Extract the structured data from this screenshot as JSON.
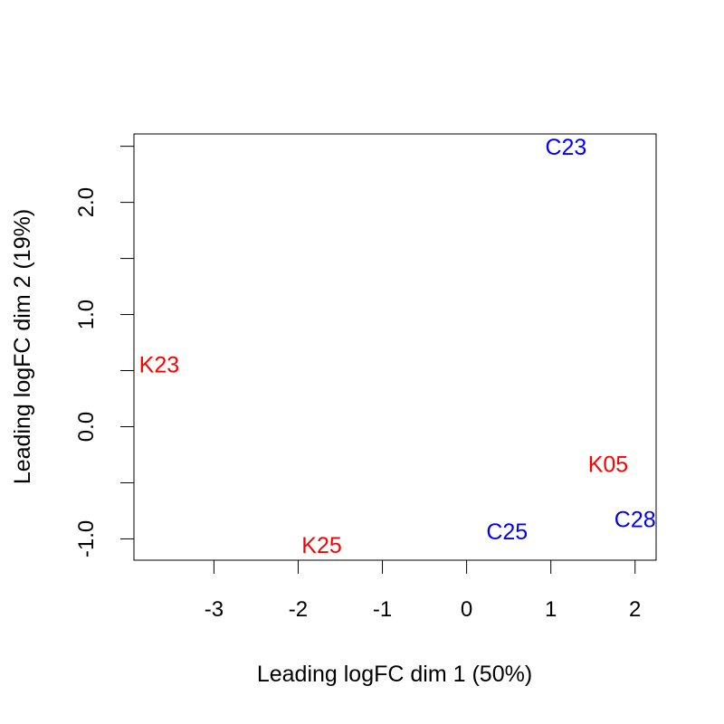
{
  "chart_data": {
    "type": "scatter",
    "marker": "text-labels",
    "title": "",
    "xlabel": "Leading logFC dim 1 (50%)",
    "ylabel": "Leading logFC dim 2 (19%)",
    "xlim": [
      -3.95,
      2.25
    ],
    "ylim": [
      -1.19,
      2.61
    ],
    "x_ticks": [
      -3,
      -2,
      -1,
      0,
      1,
      2
    ],
    "x_tick_labels": [
      "-3",
      "-2",
      "-1",
      "0",
      "1",
      "2"
    ],
    "y_ticks": [
      -1.0,
      -0.5,
      0.0,
      0.5,
      1.0,
      1.5,
      2.0,
      2.5
    ],
    "y_tick_labels": [
      "-1.0",
      "",
      "0.0",
      "",
      "1.0",
      "",
      "2.0",
      ""
    ],
    "grid": false,
    "legend": "none",
    "points": [
      {
        "label": "C23",
        "x": 1.18,
        "y": 2.49,
        "color": "#0000ff"
      },
      {
        "label": "K23",
        "x": -3.65,
        "y": 0.55,
        "color": "#ff0000"
      },
      {
        "label": "K05",
        "x": 1.68,
        "y": -0.34,
        "color": "#ff0000"
      },
      {
        "label": "C28",
        "x": 2.0,
        "y": -0.83,
        "color": "#0000ff"
      },
      {
        "label": "C25",
        "x": 0.48,
        "y": -0.94,
        "color": "#0000ff"
      },
      {
        "label": "K25",
        "x": -1.72,
        "y": -1.06,
        "color": "#ff0000"
      }
    ]
  }
}
